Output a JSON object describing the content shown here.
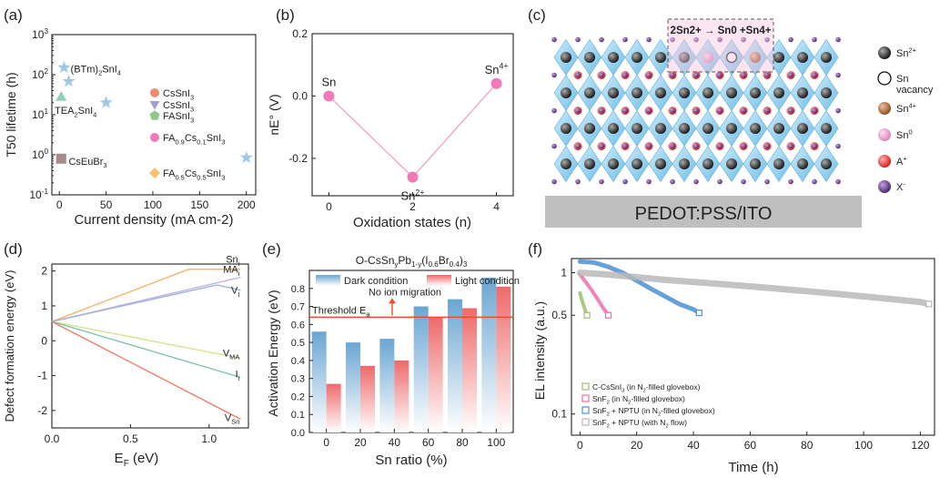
{
  "colors": {
    "axis": "#222222",
    "star": "#9fc7e6",
    "triangle": "#8fd1b8",
    "csebr": "#a88a8a",
    "orange_dot": "#f08a6f",
    "purple_tri": "#a89cc8",
    "green_pent": "#8fc98a",
    "pink": "#f07ab8",
    "gold": "#f7c16b",
    "pink_line": "#f2a7c4",
    "blue_bar": "#6aa6d3",
    "red_bar": "#ee6a6a",
    "threshold": "#e8502a",
    "octa": "#8fd0ee",
    "sn2": "#222222",
    "sn4": "#b8693c",
    "sn0": "#eaa2cf",
    "a_plus": "#e52222",
    "x_minus": "#6a3a8a",
    "substrate": "#bfbfbf"
  },
  "chart_data": [
    {
      "panel": "(a)",
      "type": "scatter",
      "xlabel": "Current density (mA cm-2)",
      "ylabel": "T50 lifetime (h)",
      "xlim": [
        -8,
        210
      ],
      "xticks": [
        0,
        50,
        100,
        150,
        200
      ],
      "ylim_log10": [
        -1,
        3
      ],
      "ytick_labels": [
        "10-1",
        "100",
        "101",
        "102",
        "103"
      ],
      "points": [
        {
          "x": 5,
          "y": 150,
          "marker": "star",
          "color": "#9fc7e6"
        },
        {
          "x": 10,
          "y": 68,
          "marker": "star",
          "color": "#9fc7e6"
        },
        {
          "x": 50,
          "y": 20,
          "marker": "star",
          "color": "#9fc7e6"
        },
        {
          "x": 200,
          "y": 0.85,
          "marker": "star",
          "color": "#9fc7e6"
        },
        {
          "x": 2,
          "y": 28,
          "marker": "triangle",
          "color": "#8fd1b8"
        },
        {
          "x": 2,
          "y": 0.8,
          "marker": "square",
          "color": "#a88a8a"
        }
      ],
      "labels": [
        {
          "x": 12,
          "y": 150,
          "text": "(BTm)2SnI4"
        },
        {
          "x": -5,
          "y": 13,
          "text": "TEA2SnI4"
        },
        {
          "x": 10,
          "y": 0.7,
          "text": "CsEuBr3"
        }
      ],
      "legend": [
        {
          "marker": "circle",
          "color": "#f08a6f",
          "text": "CsSnI3"
        },
        {
          "marker": "invtriangle",
          "color": "#a89cc8",
          "text": "CsSnI3"
        },
        {
          "marker": "pentagon",
          "color": "#8fc98a",
          "text": "FASnI3"
        },
        {
          "marker": "circle",
          "color": "#f07ab8",
          "text": "FA0.9Cs0.1SnI3"
        },
        {
          "marker": "diamond",
          "color": "#f7c16b",
          "text": "FA0.5Cs0.5SnI3"
        }
      ]
    },
    {
      "panel": "(b)",
      "type": "line",
      "xlabel": "Oxidation states (n)",
      "ylabel": "nE° (V)",
      "xlim": [
        -0.4,
        4.4
      ],
      "ylim": [
        -0.32,
        0.2
      ],
      "xticks": [
        0,
        2,
        4
      ],
      "yticks": [
        0.2,
        0.0,
        -0.2
      ],
      "x": [
        0,
        2,
        4
      ],
      "y": [
        0.0,
        -0.26,
        0.04
      ],
      "point_labels": [
        "Sn",
        "Sn2+",
        "Sn4+"
      ]
    },
    {
      "panel": "(d)",
      "type": "line",
      "xlabel": "EF (eV)",
      "ylabel": "Defect formation energy (eV)",
      "xlim": [
        0.0,
        1.25
      ],
      "ylim": [
        -2.5,
        2.2
      ],
      "xticks": [
        0.0,
        0.5,
        1.0
      ],
      "yticks": [
        2,
        1,
        0,
        -1,
        -2
      ],
      "series": [
        {
          "name": "Sni",
          "color": "#f5b472",
          "x": [
            0,
            0.87,
            1.2
          ],
          "y": [
            0.55,
            2.05,
            2.05
          ]
        },
        {
          "name": "MAi",
          "color": "#c6b4e0",
          "x": [
            0,
            1.2
          ],
          "y": [
            0.55,
            1.82
          ]
        },
        {
          "name": "VI",
          "color": "#9db3dd",
          "x": [
            0,
            1.05,
            1.2
          ],
          "y": [
            0.55,
            1.6,
            1.45
          ]
        },
        {
          "name": "VMA",
          "color": "#d6e28f",
          "x": [
            0,
            1.2
          ],
          "y": [
            0.55,
            -0.5
          ]
        },
        {
          "name": "Ii",
          "color": "#7fc3b0",
          "x": [
            0,
            1.2
          ],
          "y": [
            0.55,
            -1.05
          ]
        },
        {
          "name": "VSn",
          "color": "#ee7d6a",
          "x": [
            0,
            1.2
          ],
          "y": [
            0.55,
            -2.25
          ]
        }
      ]
    },
    {
      "panel": "(e)",
      "type": "bar",
      "title": "O-CsSnyPb1-y(I0.6Br0.4)3",
      "xlabel": "Sn ratio (%)",
      "ylabel": "Activation Energy (eV)",
      "ylim": [
        0.0,
        0.9
      ],
      "yticks": [
        0.0,
        0.1,
        0.2,
        0.3,
        0.4,
        0.5,
        0.6,
        0.7,
        0.8
      ],
      "categories": [
        "0",
        "20",
        "40",
        "60",
        "80",
        "100"
      ],
      "series": [
        {
          "name": "Dark condition",
          "color": "#6aa6d3",
          "values": [
            0.56,
            0.5,
            0.52,
            0.7,
            0.74,
            0.86
          ]
        },
        {
          "name": "Light condition",
          "color": "#ee6a6a",
          "values": [
            0.27,
            0.37,
            0.4,
            0.64,
            0.69,
            0.81
          ]
        }
      ],
      "threshold": {
        "value": 0.64,
        "label": "Threshold Ea"
      },
      "annotation": "No ion migration"
    },
    {
      "panel": "(f)",
      "type": "scatter",
      "xlabel": "Time (h)",
      "ylabel": "EL intensity (a.u.)",
      "xlim": [
        -3,
        125
      ],
      "xticks": [
        0,
        20,
        40,
        60,
        80,
        100,
        120
      ],
      "ylim_log10": [
        -1.15,
        0.1
      ],
      "ytick_labels": [
        "1",
        "0.5",
        "0.1"
      ],
      "series": [
        {
          "name": "C-CsSnI3 (in N2-filled glovebox)",
          "color": "#9fbf6a",
          "x": [
            0,
            0.5,
            1,
            1.5,
            2,
            2.5
          ],
          "y": [
            0.72,
            0.66,
            0.61,
            0.57,
            0.53,
            0.5
          ]
        },
        {
          "name": "SnF2 (in N2-filled glovebox)",
          "color": "#f06fa8",
          "x": [
            0,
            2,
            4,
            6,
            8,
            10
          ],
          "y": [
            0.97,
            0.86,
            0.76,
            0.66,
            0.57,
            0.5
          ]
        },
        {
          "name": "SnF2 + NPTU (in N2-filled glovebox)",
          "color": "#4d8fd6",
          "x": [
            0,
            5,
            10,
            15,
            20,
            25,
            30,
            35,
            40,
            42
          ],
          "y": [
            1.2,
            1.18,
            1.1,
            1.0,
            0.88,
            0.77,
            0.68,
            0.6,
            0.55,
            0.52
          ]
        },
        {
          "name": "SnF2 + NPTU (with N2 flow)",
          "color": "#b8b8b8",
          "x": [
            0,
            10,
            20,
            30,
            40,
            50,
            60,
            70,
            80,
            90,
            100,
            110,
            120,
            123
          ],
          "y": [
            1.0,
            0.97,
            0.93,
            0.89,
            0.86,
            0.83,
            0.8,
            0.77,
            0.74,
            0.71,
            0.68,
            0.65,
            0.62,
            0.6
          ]
        }
      ]
    }
  ],
  "panel_c": {
    "label": "(c)",
    "reaction": "2Sn2+ → Sn0 +Sn4+",
    "substrate": "PEDOT:PSS/ITO",
    "legend": [
      "Sn2+",
      "Sn vacancy",
      "Sn4+",
      "Sn0",
      "A+",
      "X-"
    ]
  }
}
